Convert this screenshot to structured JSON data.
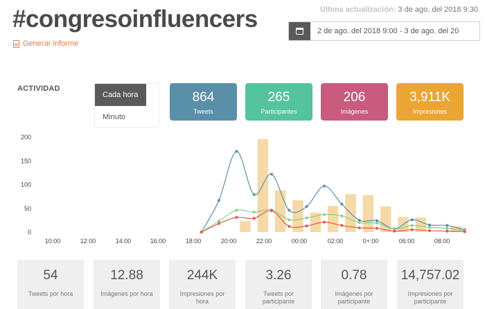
{
  "header": {
    "title": "#congresoinfluencers",
    "report_link": "Generar informe",
    "last_update_label": "Última actualización:",
    "last_update_value": "3 de ago. del 2018 9:30",
    "date_range": "2 de ago. del 2018 9:00 - 3 de ago. del 20"
  },
  "activity": {
    "label": "ACTIVIDAD",
    "options": [
      "Cada hora",
      "Minuto"
    ]
  },
  "stats": {
    "tweets": {
      "value": "864",
      "label": "Tweets",
      "color": "#5a8fa8"
    },
    "participants": {
      "value": "265",
      "label": "Participantes",
      "color": "#55c39b"
    },
    "images": {
      "value": "206",
      "label": "Imágenes",
      "color": "#c95b7e"
    },
    "impressions": {
      "value": "3,911K",
      "label": "Impresiones",
      "color": "#eaa534"
    }
  },
  "chart_data": {
    "type": "bar",
    "x_ticks": [
      "10:00",
      "12:00",
      "14:00",
      "16:00",
      "18:00",
      "20:00",
      "22:00",
      "00:00",
      "02:00",
      "0+:00",
      "06:00",
      "08:00"
    ],
    "y_ticks": [
      0,
      50,
      100,
      150,
      200
    ],
    "ylim": [
      0,
      200
    ],
    "xlim": [
      -4,
      44
    ],
    "bar_color": "#f5d9a6",
    "bars": [
      {
        "x": 20,
        "value": 23
      },
      {
        "x": 22,
        "value": 196
      },
      {
        "x": 24,
        "value": 88
      },
      {
        "x": 26,
        "value": 67
      },
      {
        "x": 28,
        "value": 41
      },
      {
        "x": 30,
        "value": 55
      },
      {
        "x": 32,
        "value": 80
      },
      {
        "x": 34,
        "value": 78
      },
      {
        "x": 36,
        "value": 54
      },
      {
        "x": 38,
        "value": 32
      },
      {
        "x": 40,
        "value": 31
      },
      {
        "x": 44,
        "value": 12
      }
    ],
    "series": [
      {
        "color": "#5a8fa8",
        "points": [
          [
            15,
            0
          ],
          [
            17,
            67
          ],
          [
            19,
            170
          ],
          [
            21,
            79
          ],
          [
            23,
            122
          ],
          [
            25,
            46
          ],
          [
            27,
            54
          ],
          [
            29,
            97
          ],
          [
            31,
            59
          ],
          [
            33,
            25
          ],
          [
            35,
            24
          ],
          [
            37,
            7
          ],
          [
            39,
            26
          ],
          [
            41,
            15
          ],
          [
            43,
            14
          ],
          [
            45,
            5
          ]
        ]
      },
      {
        "color": "#8ccf8a",
        "points": [
          [
            15,
            0
          ],
          [
            17,
            23
          ],
          [
            19,
            46
          ],
          [
            21,
            42
          ],
          [
            23,
            47
          ],
          [
            25,
            26
          ],
          [
            27,
            30
          ],
          [
            29,
            37
          ],
          [
            31,
            34
          ],
          [
            33,
            20
          ],
          [
            35,
            19
          ],
          [
            37,
            6
          ],
          [
            39,
            14
          ],
          [
            41,
            10
          ],
          [
            43,
            8
          ],
          [
            45,
            3
          ]
        ]
      },
      {
        "color": "#e05a4a",
        "points": [
          [
            15,
            0
          ],
          [
            17,
            18
          ],
          [
            19,
            31
          ],
          [
            21,
            29
          ],
          [
            23,
            45
          ],
          [
            25,
            12
          ],
          [
            27,
            13
          ],
          [
            29,
            21
          ],
          [
            31,
            14
          ],
          [
            33,
            9
          ],
          [
            35,
            8
          ],
          [
            37,
            2
          ],
          [
            39,
            5
          ],
          [
            41,
            3
          ],
          [
            43,
            2
          ],
          [
            45,
            1
          ]
        ]
      }
    ]
  },
  "summary": [
    {
      "value": "54",
      "label": "Tweets por hora"
    },
    {
      "value": "12.88",
      "label": "Imágenes por hora"
    },
    {
      "value": "244K",
      "label": "Impresiones por hora"
    },
    {
      "value": "3.26",
      "label": "Tweets por participante"
    },
    {
      "value": "0.78",
      "label": "Imágenes por participante"
    },
    {
      "value": "14,757.02",
      "label": "Impresiones por participante"
    }
  ]
}
